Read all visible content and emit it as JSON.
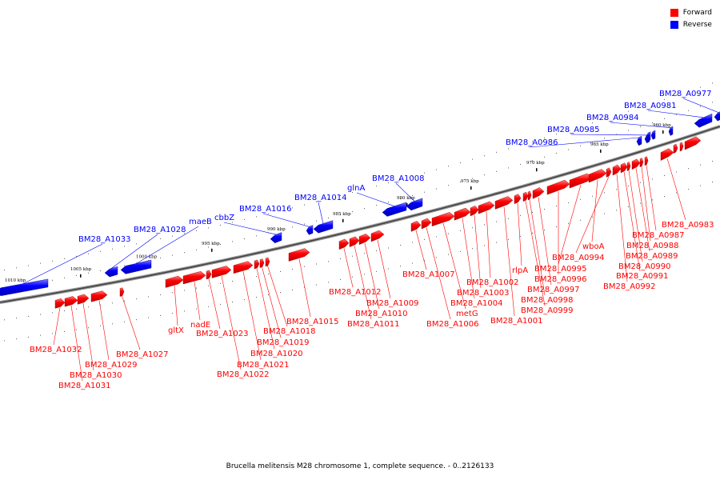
{
  "legend": {
    "forward_label": "Forward",
    "reverse_label": "Reverse",
    "forward_color": "#ff0000",
    "reverse_color": "#0000ff"
  },
  "caption": "Brucella melitensis M28 chromosome 1, complete sequence. - 0..2126133",
  "ticks": [
    "1010 kbp",
    "1005 kbp",
    "1000 kbp",
    "995 kbp",
    "990 kbp",
    "985 kbp",
    "980 kbp",
    "975 kbp",
    "970 kbp",
    "965 kbp",
    "960 kbp"
  ],
  "reverse_genes": [
    "BM28_A1033",
    "BM28_A1028",
    "maeB",
    "cbbZ",
    "BM28_A1016",
    "BM28_A1014",
    "glnA",
    "BM28_A1008",
    "BM28_A0986",
    "BM28_A0985",
    "BM28_A0984",
    "BM28_A0981",
    "BM28_A0977"
  ],
  "forward_genes": [
    "BM28_A1032",
    "BM28_A1031",
    "BM28_A1030",
    "BM28_A1029",
    "BM28_A1027",
    "gltX",
    "nadE",
    "BM28_A1023",
    "BM28_A1022",
    "BM28_A1021",
    "BM28_A1020",
    "BM28_A1019",
    "BM28_A1018",
    "BM28_A1015",
    "BM28_A1012",
    "BM28_A1011",
    "BM28_A1010",
    "BM28_A1009",
    "BM28_A1007",
    "BM28_A1006",
    "metG",
    "BM28_A1004",
    "BM28_A1003",
    "BM28_A1002",
    "BM28_A1001",
    "rlpA",
    "BM28_A0999",
    "BM28_A0998",
    "BM28_A0997",
    "BM28_A0996",
    "BM28_A0995",
    "wboA",
    "BM28_A0994",
    "BM28_A0992",
    "BM28_A0991",
    "BM28_A0990",
    "BM28_A0989",
    "BM28_A0988",
    "BM28_A0987",
    "BM28_A0983"
  ]
}
